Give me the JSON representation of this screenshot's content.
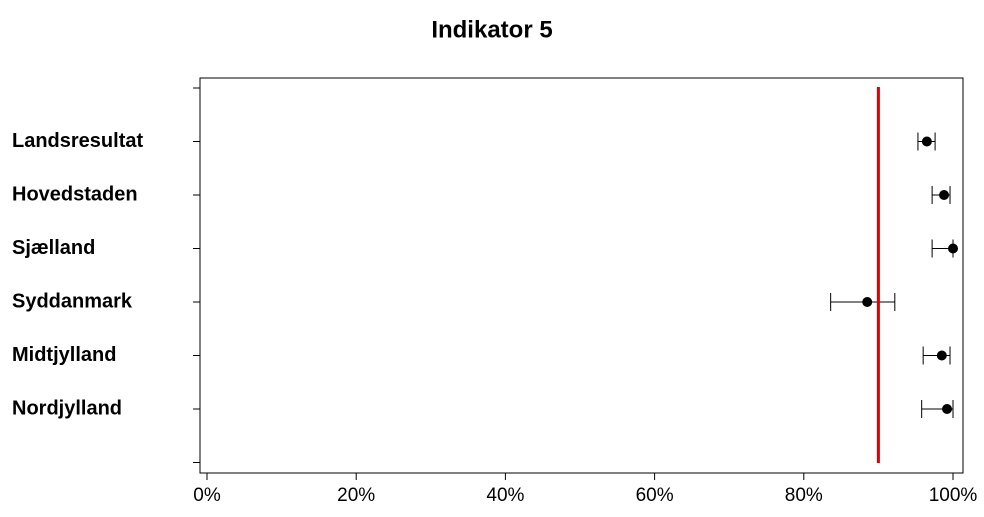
{
  "chart_data": {
    "type": "dot",
    "title": "Indikator 5",
    "categories": [
      null,
      "Landsresultat",
      "Hovedstaden",
      "Sjælland",
      "Syddanmark",
      "Midtjylland",
      "Nordjylland",
      null
    ],
    "values": [
      null,
      96.5,
      98.8,
      100,
      88.5,
      98.5,
      99.2,
      null
    ],
    "lower": [
      null,
      95.3,
      97.2,
      97.2,
      83.6,
      96.0,
      95.8,
      null
    ],
    "upper": [
      null,
      97.6,
      99.6,
      100,
      92.2,
      99.6,
      100,
      null
    ],
    "color": "#000000",
    "reference_line": {
      "value": 90,
      "color": "#e00000"
    },
    "xlim": [
      0,
      100
    ],
    "xticks": [
      {
        "value": 0,
        "label": "0%"
      },
      {
        "value": 20,
        "label": "20%"
      },
      {
        "value": 40,
        "label": "40%"
      },
      {
        "value": 60,
        "label": "60%"
      },
      {
        "value": 80,
        "label": "80%"
      },
      {
        "value": 100,
        "label": "100%"
      }
    ]
  }
}
